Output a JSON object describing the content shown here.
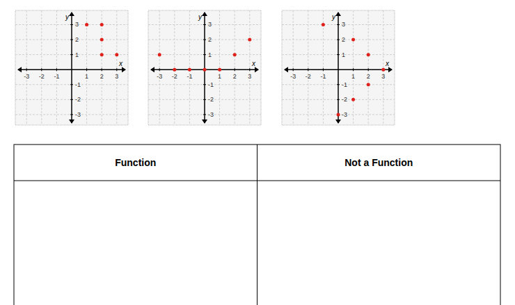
{
  "chart_data": [
    {
      "type": "scatter",
      "x_label": "x",
      "y_label": "y",
      "x": [
        1,
        2,
        2,
        2,
        3
      ],
      "values": [
        3,
        3,
        2,
        1,
        1
      ],
      "color": "#e0201b",
      "marker": "circle",
      "xlim": [
        -3.75,
        3.75
      ],
      "ylim": [
        -3.7,
        3.95
      ],
      "xticks": [
        -3,
        -2,
        -1,
        1,
        2,
        3
      ],
      "yticks": [
        -3,
        -2,
        -1,
        1,
        2,
        3
      ],
      "grid": true
    },
    {
      "type": "scatter",
      "x_label": "x",
      "y_label": "y",
      "x": [
        -3,
        -2,
        -1,
        0,
        1,
        2,
        3
      ],
      "values": [
        1,
        0,
        0,
        0,
        0,
        1,
        2
      ],
      "color": "#e0201b",
      "marker": "circle",
      "xlim": [
        -3.75,
        3.75
      ],
      "ylim": [
        -3.7,
        3.95
      ],
      "xticks": [
        -3,
        -2,
        -1,
        1,
        2,
        3
      ],
      "yticks": [
        -3,
        -2,
        -1,
        1,
        2,
        3
      ],
      "grid": true
    },
    {
      "type": "scatter",
      "x_label": "x",
      "y_label": "y",
      "x": [
        -1,
        1,
        2,
        3,
        2,
        1,
        0
      ],
      "values": [
        3,
        2,
        1,
        0,
        -1,
        -2,
        -3
      ],
      "color": "#e0201b",
      "marker": "circle",
      "xlim": [
        -3.75,
        3.75
      ],
      "ylim": [
        -3.7,
        3.95
      ],
      "xticks": [
        -3,
        -2,
        -1,
        1,
        2,
        3
      ],
      "yticks": [
        -3,
        -2,
        -1,
        1,
        2,
        3
      ],
      "grid": true
    }
  ],
  "table": {
    "headers": [
      "Function",
      "Not a Function"
    ],
    "rows": []
  }
}
